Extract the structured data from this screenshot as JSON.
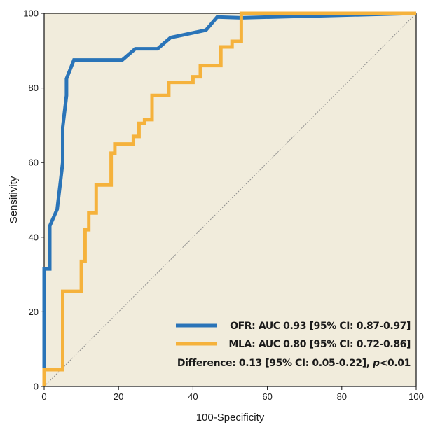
{
  "chart_data": {
    "type": "line",
    "title": "",
    "xlabel": "100-Specificity",
    "ylabel": "Sensitivity",
    "xlim": [
      0,
      100
    ],
    "ylim": [
      0,
      100
    ],
    "xticks": [
      0,
      20,
      40,
      60,
      80,
      100
    ],
    "yticks": [
      0,
      20,
      40,
      60,
      80,
      100
    ],
    "grid": false,
    "background": "#f1ecdc",
    "legend_position": "bottom-right",
    "series": [
      {
        "name": "OFR: AUC 0.93 [95% CI: 0.87-0.97]",
        "color": "#2a74b8",
        "x": [
          0,
          0,
          1.5,
          1.5,
          3.5,
          5,
          5,
          6,
          6,
          8,
          21,
          24.5,
          30.5,
          34,
          43.5,
          46.5,
          53,
          100
        ],
        "y": [
          0,
          31.5,
          31.5,
          43,
          47.5,
          60,
          69.5,
          78,
          82.5,
          87.5,
          87.5,
          90.5,
          90.5,
          93.5,
          95.5,
          99,
          98.8,
          100
        ]
      },
      {
        "name": "MLA: AUC 0.80 [95% CI: 0.72-0.86]",
        "color": "#f5b23c",
        "x": [
          0,
          0,
          5,
          5,
          10,
          10,
          11,
          11,
          12,
          12,
          14,
          14,
          18,
          18,
          19,
          19,
          24,
          24,
          25.5,
          25.5,
          27,
          27,
          29,
          29,
          33.5,
          33.5,
          40,
          40,
          42,
          42,
          47.5,
          47.5,
          50.5,
          50.5,
          53,
          53,
          100
        ],
        "y": [
          0,
          4.5,
          4.5,
          25.5,
          25.5,
          33.5,
          33.5,
          42,
          42,
          46.5,
          46.5,
          54,
          54,
          62.5,
          62.5,
          65,
          65,
          67,
          67,
          70.5,
          70.5,
          71.5,
          71.5,
          78,
          78,
          81.5,
          81.5,
          83,
          83,
          86,
          86,
          91,
          91,
          92.5,
          92.5,
          100,
          100
        ]
      },
      {
        "name": "",
        "color": "#8a8a8a",
        "style": "dotted",
        "x": [
          0,
          100
        ],
        "y": [
          0,
          100
        ]
      }
    ],
    "annotations": [
      "Difference: 0.13 [95% CI: 0.05-0.22], p<0.01"
    ]
  },
  "legend": {
    "ofr": "OFR: AUC 0.93 [95% CI: 0.87-0.97]",
    "mla": "MLA: AUC 0.80 [95% CI: 0.72-0.86]",
    "diff_prefix": "Difference: 0.13 [95% CI: 0.05-0.22], ",
    "diff_p": "p",
    "diff_suffix": "<0.01"
  }
}
